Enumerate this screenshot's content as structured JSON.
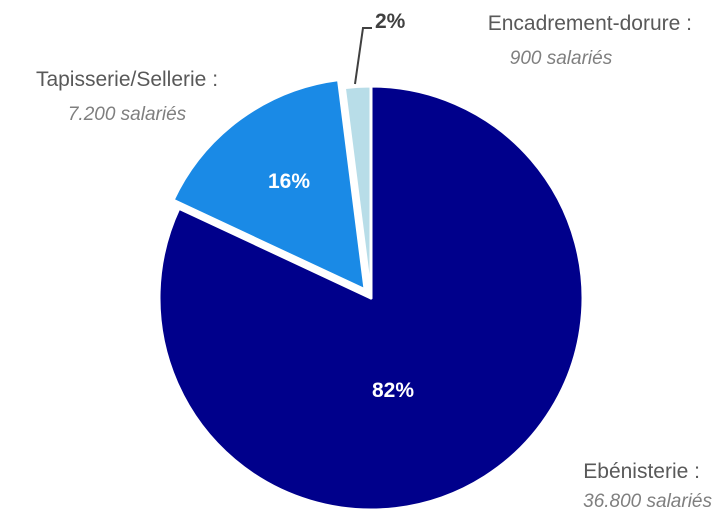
{
  "chart_data": {
    "type": "pie",
    "slices": [
      {
        "category": "Ebénisterie :",
        "detail": "36.800 salariés",
        "value": 36800,
        "percent_label": "82%",
        "color": "#00008b",
        "label_color": "#ffffff"
      },
      {
        "category": "Tapisserie/Sellerie :",
        "detail": "7.200 salariés",
        "value": 7200,
        "percent_label": "16%",
        "color": "#1a8ae6",
        "label_color": "#ffffff"
      },
      {
        "category": "Encadrement-dorure :",
        "detail": "900 salariés",
        "value": 900,
        "percent_label": "2%",
        "color": "#b8dde8",
        "label_color": "#404040"
      }
    ],
    "start_angle_deg": 0,
    "direction": "clockwise",
    "explode": [
      false,
      true,
      false
    ],
    "legend": "none",
    "leader_line_on": "Encadrement-dorure :"
  }
}
